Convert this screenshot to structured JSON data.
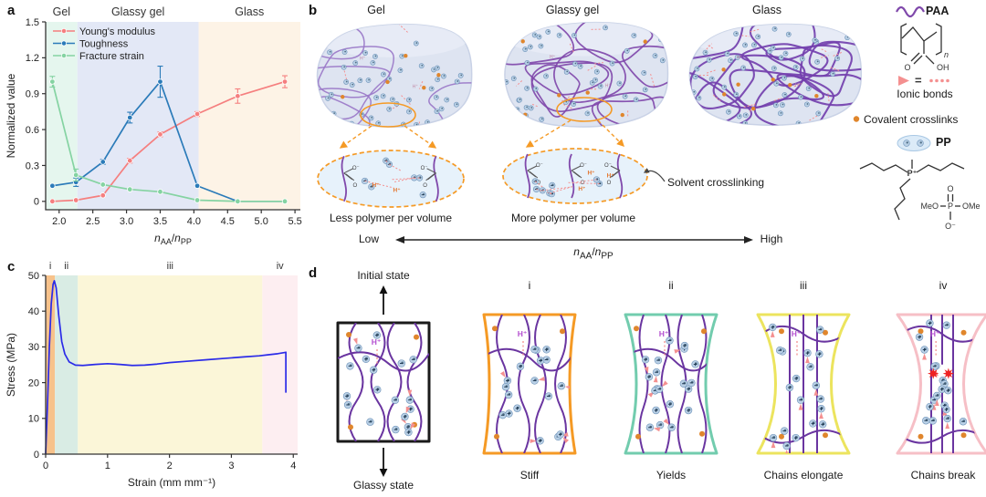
{
  "colors": {
    "chain": "#8049ab",
    "chain_light": "#9a78c8",
    "chain_dark": "#7340ae",
    "ionic": "#f49090",
    "ionic_strong": "#ee2222",
    "crosslink": "#e0862c",
    "sphere_fill": "#b9d0e6",
    "sphere_edge": "#6d92b8",
    "sphere_glyph": "#2e4d66",
    "block_fill": "#dee4f1",
    "block_edge": "#c9d2e6",
    "block_top": "#e9eef7",
    "inset_fill": "#e7f2fb",
    "callout": "#f59a25",
    "hplus_stage": "#b44fd0",
    "hplus_inset": "#e4762f",
    "curve_blue": "#2b2be8"
  },
  "panels": {
    "a": {
      "label": "a"
    },
    "b": {
      "label": "b",
      "block_labels": [
        "Gel",
        "Glassy gel",
        "Glass"
      ],
      "caption_left": "Less polymer per volume",
      "caption_right": "More polymer per volume",
      "solvent": "Solvent crosslinking",
      "low": "Low",
      "high": "High",
      "axis_html": "<i>n</i><sub>AA</sub>/<i>n</i><sub>PP</sub>",
      "hplus": "H⁺",
      "ominus": "O⁻",
      "oxygen": "O"
    },
    "c": {
      "label": "c"
    },
    "d": {
      "label": "d",
      "hplus": "H⁺",
      "stages": [
        {
          "top": "Initial state",
          "bottom": "Glassy state",
          "color": "#1a1a1a"
        },
        {
          "top": "i",
          "bottom": "Stiff",
          "color": "#f59a25"
        },
        {
          "top": "ii",
          "bottom": "Yields",
          "color": "#72ccae"
        },
        {
          "top": "iii",
          "bottom": "Chains elongate",
          "color": "#ece45e"
        },
        {
          "top": "iv",
          "bottom": "Chains break",
          "color": "#f6bfc6"
        }
      ]
    }
  },
  "legend": {
    "paa": "PAA",
    "n": "n",
    "o": "O",
    "oh": "OH",
    "eq": "=",
    "ionic": "Ionic bonds",
    "covalent": "Covalent crosslinks",
    "pp": "PP",
    "p_plus": "P⁺",
    "meo": "MeO",
    "ome": "OMe",
    "o_minus": "O⁻"
  },
  "chart_data": [
    {
      "id": "a",
      "type": "line",
      "ylabel": "Normalized value",
      "xlabel_parts": [
        {
          "t": "n",
          "i": true
        },
        {
          "t": "AA",
          "sub": true
        },
        {
          "t": "/"
        },
        {
          "t": "n",
          "i": true
        },
        {
          "t": "PP",
          "sub": true
        }
      ],
      "xlim": [
        1.8,
        5.58
      ],
      "ylim": [
        -0.07,
        1.5
      ],
      "xticks": [
        2.0,
        2.5,
        3.0,
        3.5,
        4.0,
        4.5,
        5.0,
        5.5
      ],
      "xtick_labels": [
        "2.0",
        "2.5",
        "3.0",
        "3.5",
        "4.0",
        "4.5",
        "5.0",
        "5.5"
      ],
      "yticks": [
        0,
        0.3,
        0.6,
        0.9,
        1.2,
        1.5
      ],
      "ytick_labels": [
        "0",
        "0.3",
        "0.6",
        "0.9",
        "1.2",
        "1.5"
      ],
      "regions": [
        {
          "label": "Gel",
          "from": 1.8,
          "to": 2.27,
          "color": "#e5f6ee"
        },
        {
          "label": "Glassy gel",
          "from": 2.27,
          "to": 4.07,
          "color": "#e3e8f6"
        },
        {
          "label": "Glass",
          "from": 4.07,
          "to": 5.58,
          "color": "#fdf3e6"
        }
      ],
      "x": [
        1.9,
        2.25,
        2.65,
        3.05,
        3.5,
        4.05,
        4.65,
        5.35
      ],
      "series": [
        {
          "name": "Young's modulus",
          "color": "#f57f7f",
          "values": [
            0,
            0.01,
            0.05,
            0.34,
            0.56,
            0.73,
            0.88,
            1.0
          ],
          "errors": [
            0.01,
            0.01,
            0.015,
            0.02,
            0.02,
            0.02,
            0.06,
            0.05
          ]
        },
        {
          "name": "Toughness",
          "color": "#2b7bb9",
          "values": [
            0.13,
            0.16,
            0.33,
            0.7,
            1.0,
            0.13,
            0,
            0
          ],
          "errors": [
            0.015,
            0.035,
            0.02,
            0.045,
            0.13,
            0.015,
            0.008,
            0.008
          ]
        },
        {
          "name": "Fracture strain",
          "color": "#85d3a2",
          "values": [
            1.0,
            0.22,
            0.14,
            0.1,
            0.08,
            0.01,
            0,
            0
          ],
          "errors": [
            0.045,
            0.05,
            0.015,
            0.012,
            0.01,
            0.006,
            0.005,
            0.005
          ]
        }
      ],
      "legend_position": "top-left"
    },
    {
      "id": "c",
      "type": "line",
      "xlabel": "Strain (mm mm⁻¹)",
      "ylabel": "Stress (MPa)",
      "xlim": [
        0,
        4.07
      ],
      "ylim": [
        0,
        50
      ],
      "xticks": [
        0,
        1,
        2,
        3,
        4
      ],
      "xtick_labels": [
        "0",
        "1",
        "2",
        "3",
        "4"
      ],
      "yticks": [
        0,
        10,
        20,
        30,
        40,
        50
      ],
      "ytick_labels": [
        "0",
        "10",
        "20",
        "30",
        "40",
        "50"
      ],
      "regions": [
        {
          "label": "i",
          "from": 0,
          "to": 0.15,
          "color": "#f7c28b"
        },
        {
          "label": "ii",
          "from": 0.15,
          "to": 0.52,
          "color": "#d9ece4"
        },
        {
          "label": "iii",
          "from": 0.52,
          "to": 3.5,
          "color": "#fbf6d8"
        },
        {
          "label": "iv",
          "from": 3.5,
          "to": 4.07,
          "color": "#fdeef1"
        }
      ],
      "series": [
        {
          "name": "Stress-strain curve",
          "color": "#2b2be8",
          "x": [
            0,
            0.03,
            0.06,
            0.09,
            0.12,
            0.14,
            0.17,
            0.21,
            0.26,
            0.31,
            0.38,
            0.48,
            0.6,
            0.8,
            1.0,
            1.2,
            1.4,
            1.6,
            1.8,
            2.0,
            2.3,
            2.6,
            2.9,
            3.2,
            3.45,
            3.6,
            3.75,
            3.85,
            3.88,
            3.88
          ],
          "y": [
            0,
            14,
            30,
            42,
            47.5,
            48.5,
            46.5,
            39,
            31.5,
            28,
            25.8,
            24.9,
            24.8,
            25.1,
            25.3,
            25.1,
            24.8,
            24.9,
            25.2,
            25.6,
            26.0,
            26.4,
            26.8,
            27.2,
            27.5,
            27.8,
            28.1,
            28.4,
            28.5,
            17.2
          ]
        }
      ]
    }
  ]
}
